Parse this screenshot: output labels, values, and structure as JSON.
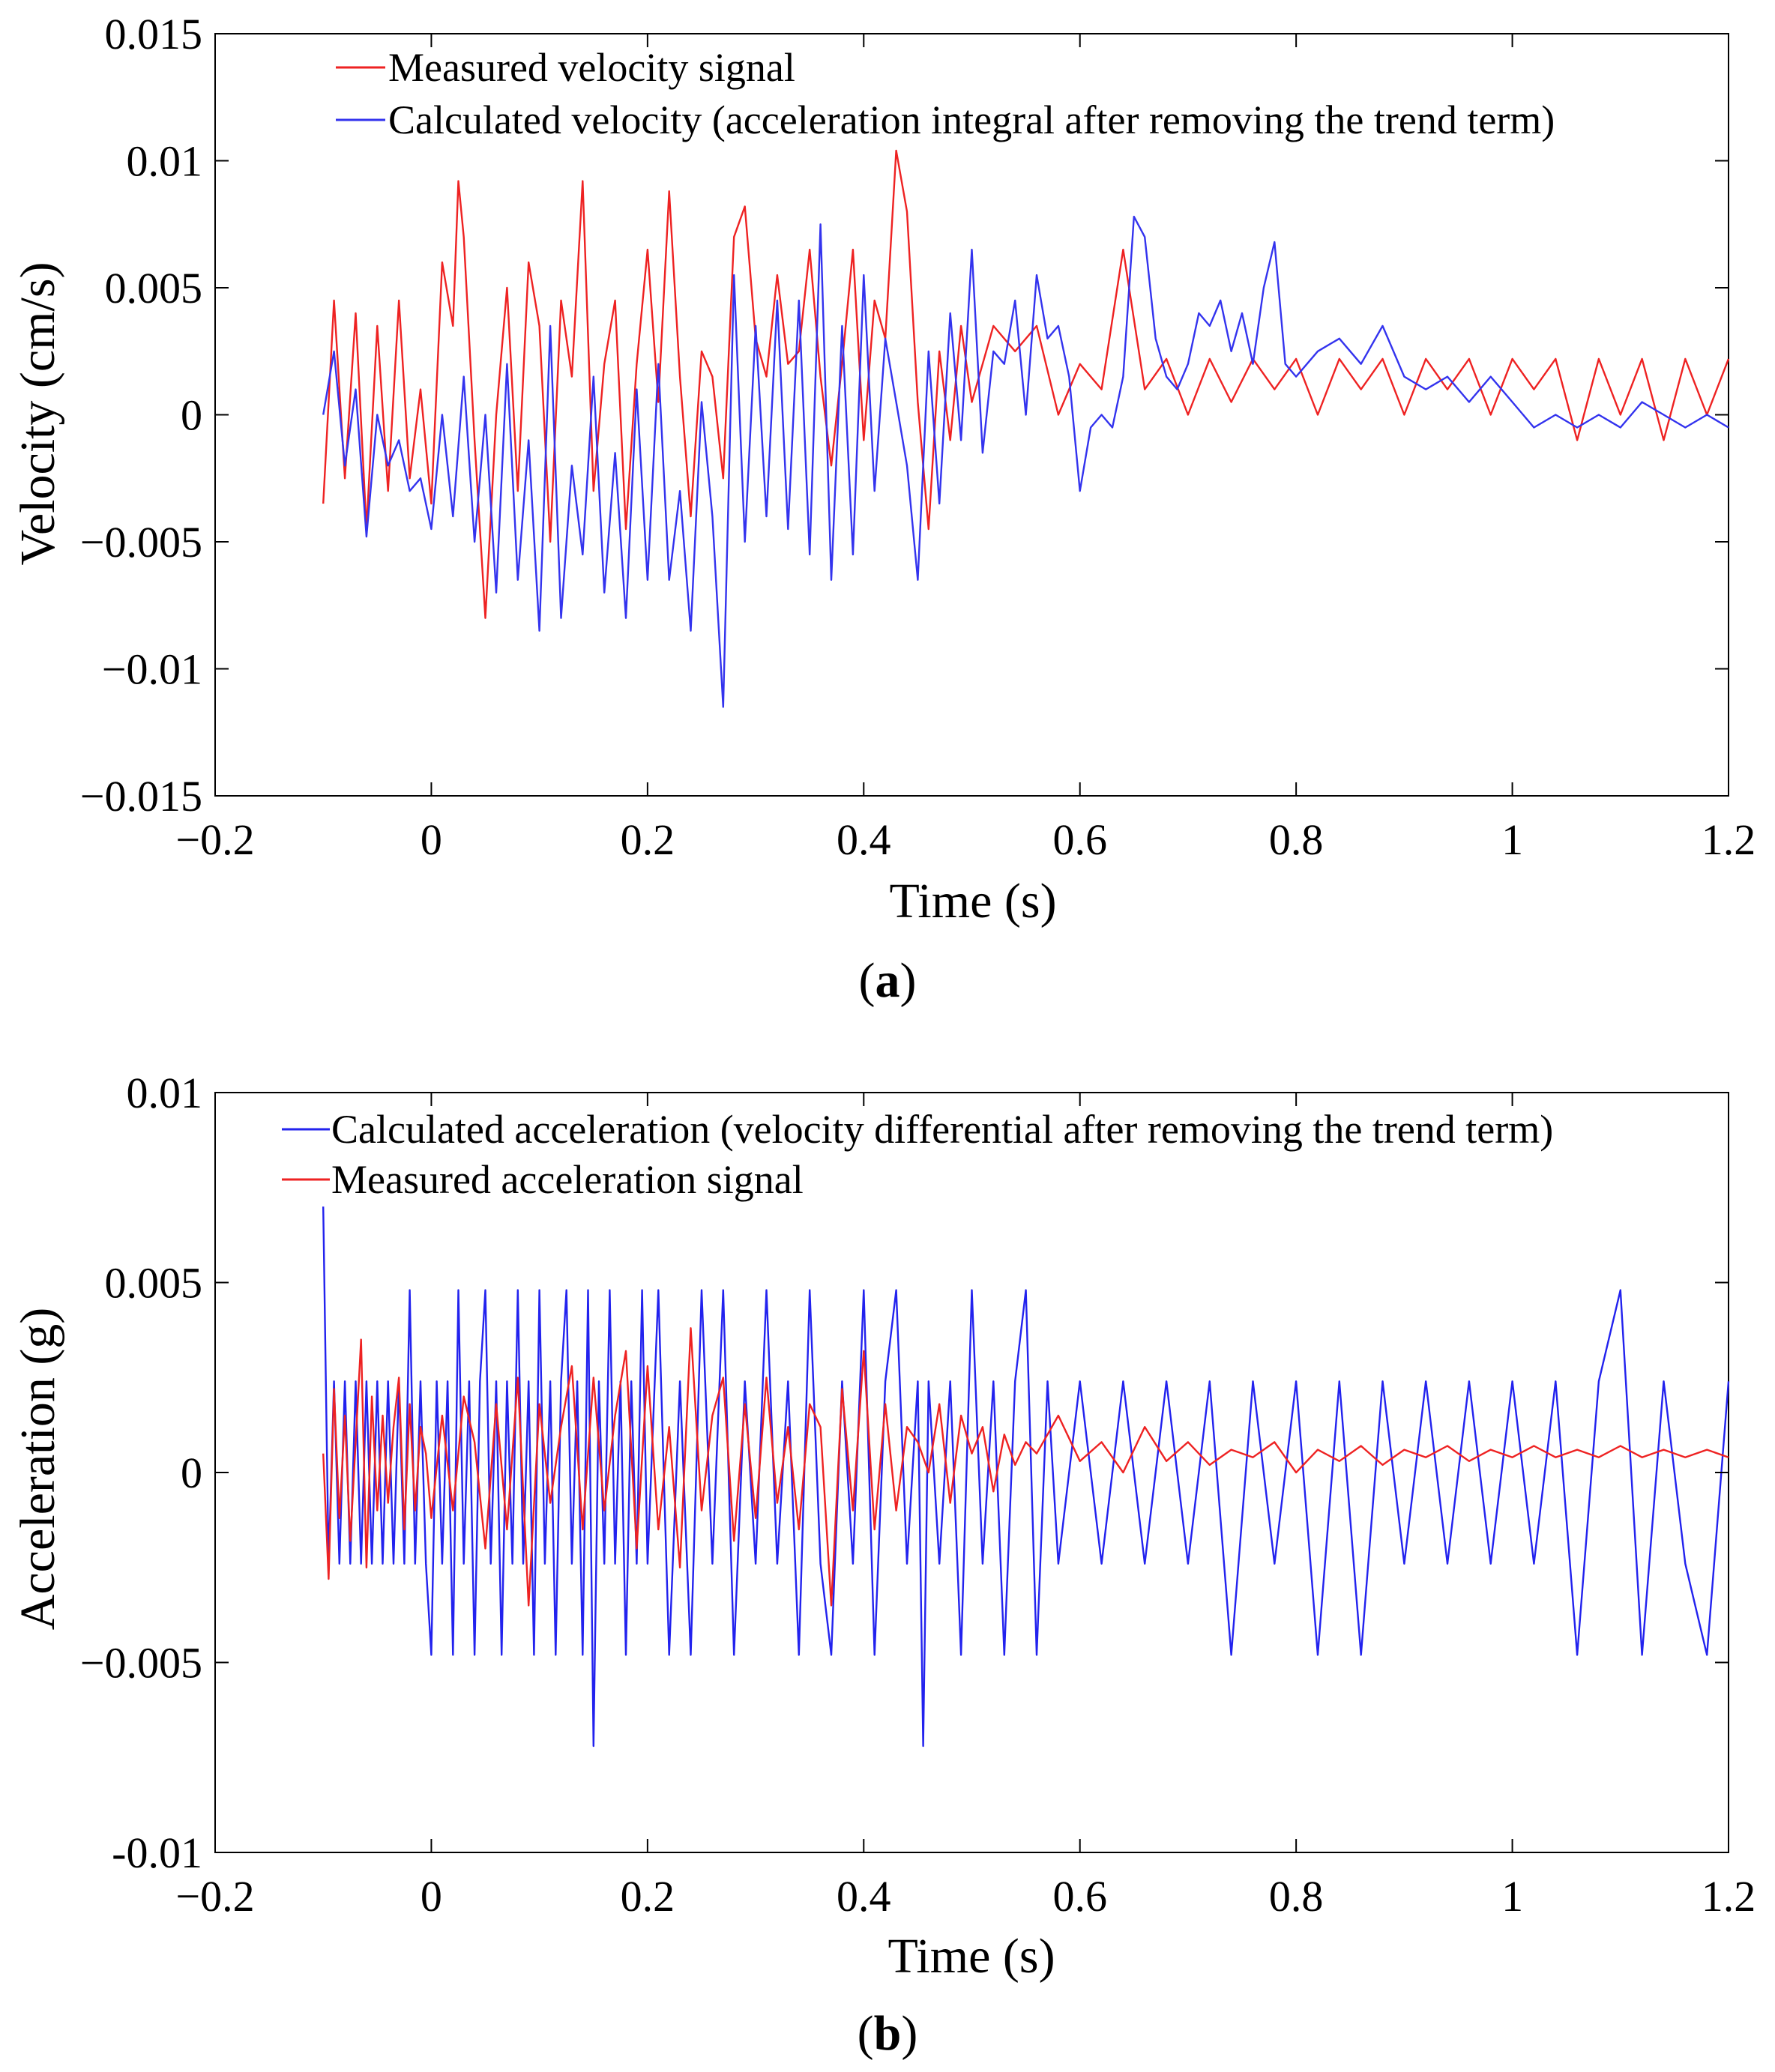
{
  "chart_data": [
    {
      "id": "a",
      "type": "line",
      "title": "",
      "panel_label": "a",
      "xlabel": "Time (s)",
      "ylabel": "Velocity (cm/s)",
      "xlim": [
        -0.2,
        1.2
      ],
      "ylim": [
        -0.015,
        0.015
      ],
      "xticks": [
        -0.2,
        0,
        0.2,
        0.4,
        0.6,
        0.8,
        1,
        1.2
      ],
      "xtick_labels": [
        "−0.2",
        "0",
        "0.2",
        "0.4",
        "0.6",
        "0.8",
        "1",
        "1.2"
      ],
      "yticks": [
        -0.015,
        -0.01,
        -0.005,
        0,
        0.005,
        0.01,
        0.015
      ],
      "ytick_labels": [
        "−0.015",
        "−0.01",
        "−0.005",
        "0",
        "0.005",
        "0.01",
        "0.015"
      ],
      "grid": false,
      "legend_position": "top",
      "series": [
        {
          "name": "Measured velocity signal",
          "color": "#ee2222",
          "x": [
            -0.1,
            -0.09,
            -0.08,
            -0.07,
            -0.06,
            -0.05,
            -0.04,
            -0.03,
            -0.02,
            -0.01,
            0.0,
            0.01,
            0.02,
            0.025,
            0.03,
            0.04,
            0.05,
            0.06,
            0.07,
            0.08,
            0.09,
            0.1,
            0.11,
            0.12,
            0.13,
            0.14,
            0.15,
            0.16,
            0.17,
            0.18,
            0.19,
            0.2,
            0.21,
            0.22,
            0.23,
            0.24,
            0.25,
            0.26,
            0.27,
            0.28,
            0.29,
            0.3,
            0.31,
            0.32,
            0.33,
            0.34,
            0.35,
            0.36,
            0.37,
            0.38,
            0.39,
            0.4,
            0.41,
            0.42,
            0.43,
            0.44,
            0.45,
            0.46,
            0.47,
            0.48,
            0.49,
            0.5,
            0.52,
            0.54,
            0.56,
            0.58,
            0.6,
            0.62,
            0.64,
            0.66,
            0.68,
            0.7,
            0.72,
            0.74,
            0.76,
            0.78,
            0.8,
            0.82,
            0.84,
            0.86,
            0.88,
            0.9,
            0.92,
            0.94,
            0.96,
            0.98,
            1.0,
            1.02,
            1.04,
            1.06,
            1.08,
            1.1,
            1.12,
            1.14,
            1.16,
            1.18,
            1.2
          ],
          "y": [
            -0.0035,
            0.0045,
            -0.0025,
            0.004,
            -0.0045,
            0.0035,
            -0.003,
            0.0045,
            -0.0025,
            0.001,
            -0.0035,
            0.006,
            0.0035,
            0.0092,
            0.007,
            -0.001,
            -0.008,
            0.0,
            0.005,
            -0.003,
            0.006,
            0.0035,
            -0.005,
            0.0045,
            0.0015,
            0.0092,
            -0.003,
            0.002,
            0.0045,
            -0.0045,
            0.002,
            0.0065,
            0.0005,
            0.0088,
            0.0015,
            -0.004,
            0.0025,
            0.0015,
            -0.0025,
            0.007,
            0.0082,
            0.003,
            0.0015,
            0.0055,
            0.002,
            0.0025,
            0.0065,
            0.0015,
            -0.002,
            0.002,
            0.0065,
            -0.001,
            0.0045,
            0.003,
            0.0104,
            0.008,
            0.0005,
            -0.0045,
            0.0025,
            -0.001,
            0.0035,
            0.0005,
            0.0035,
            0.0025,
            0.0035,
            0.0,
            0.002,
            0.001,
            0.0065,
            0.001,
            0.0022,
            0.0,
            0.0022,
            0.0005,
            0.0022,
            0.001,
            0.0022,
            0.0,
            0.0022,
            0.001,
            0.0022,
            0.0,
            0.0022,
            0.001,
            0.0022,
            0.0,
            0.0022,
            0.001,
            0.0022,
            -0.001,
            0.0022,
            0.0,
            0.0022,
            -0.001,
            0.0022,
            0.0,
            0.0022
          ]
        },
        {
          "name": "Calculated velocity (acceleration integral after removing the trend term)",
          "color": "#3333ee",
          "x": [
            -0.1,
            -0.09,
            -0.08,
            -0.07,
            -0.06,
            -0.05,
            -0.04,
            -0.03,
            -0.02,
            -0.01,
            0.0,
            0.01,
            0.02,
            0.03,
            0.04,
            0.05,
            0.06,
            0.07,
            0.08,
            0.09,
            0.1,
            0.11,
            0.12,
            0.13,
            0.14,
            0.15,
            0.16,
            0.17,
            0.18,
            0.19,
            0.2,
            0.21,
            0.22,
            0.23,
            0.24,
            0.25,
            0.26,
            0.27,
            0.28,
            0.29,
            0.3,
            0.31,
            0.32,
            0.33,
            0.34,
            0.35,
            0.36,
            0.37,
            0.38,
            0.39,
            0.4,
            0.41,
            0.42,
            0.43,
            0.44,
            0.45,
            0.46,
            0.47,
            0.48,
            0.49,
            0.5,
            0.51,
            0.52,
            0.53,
            0.54,
            0.55,
            0.56,
            0.57,
            0.58,
            0.59,
            0.6,
            0.61,
            0.62,
            0.63,
            0.64,
            0.65,
            0.66,
            0.67,
            0.68,
            0.69,
            0.7,
            0.71,
            0.72,
            0.73,
            0.74,
            0.75,
            0.76,
            0.77,
            0.78,
            0.79,
            0.8,
            0.82,
            0.84,
            0.86,
            0.88,
            0.9,
            0.92,
            0.94,
            0.96,
            0.98,
            1.0,
            1.02,
            1.04,
            1.06,
            1.08,
            1.1,
            1.12,
            1.14,
            1.16,
            1.18,
            1.2
          ],
          "y": [
            0.0,
            0.0025,
            -0.002,
            0.001,
            -0.0048,
            0.0,
            -0.002,
            -0.001,
            -0.003,
            -0.0025,
            -0.0045,
            0.0,
            -0.004,
            0.0015,
            -0.005,
            0.0,
            -0.007,
            0.002,
            -0.0065,
            -0.001,
            -0.0085,
            0.0035,
            -0.008,
            -0.002,
            -0.0055,
            0.0015,
            -0.007,
            -0.0015,
            -0.008,
            0.001,
            -0.0065,
            0.002,
            -0.0065,
            -0.003,
            -0.0085,
            0.0005,
            -0.004,
            -0.0115,
            0.0055,
            -0.005,
            0.0035,
            -0.004,
            0.0045,
            -0.0045,
            0.0045,
            -0.0055,
            0.0075,
            -0.0065,
            0.0035,
            -0.0055,
            0.0055,
            -0.003,
            0.003,
            0.0005,
            -0.002,
            -0.0065,
            0.0025,
            -0.0035,
            0.004,
            -0.001,
            0.0065,
            -0.0015,
            0.0025,
            0.002,
            0.0045,
            0.0,
            0.0055,
            0.003,
            0.0035,
            0.0015,
            -0.003,
            -0.0005,
            0.0,
            -0.0005,
            0.0015,
            0.0078,
            0.007,
            0.003,
            0.0015,
            0.001,
            0.002,
            0.004,
            0.0035,
            0.0045,
            0.0025,
            0.004,
            0.002,
            0.005,
            0.0068,
            0.002,
            0.0015,
            0.0025,
            0.003,
            0.002,
            0.0035,
            0.0015,
            0.001,
            0.0015,
            0.0005,
            0.0015,
            0.0005,
            -0.0005,
            0.0,
            -0.0005,
            0.0,
            -0.0005,
            0.0005,
            0.0,
            -0.0005,
            0.0,
            -0.0005
          ]
        }
      ]
    },
    {
      "id": "b",
      "type": "line",
      "title": "",
      "panel_label": "b",
      "xlabel": "Time (s)",
      "ylabel": "Acceleration (g)",
      "xlim": [
        -0.2,
        1.2
      ],
      "ylim": [
        -0.01,
        0.01
      ],
      "xticks": [
        -0.2,
        0,
        0.2,
        0.4,
        0.6,
        0.8,
        1,
        1.2
      ],
      "xtick_labels": [
        "−0.2",
        "0",
        "0.2",
        "0.4",
        "0.6",
        "0.8",
        "1",
        "1.2"
      ],
      "yticks": [
        -0.01,
        -0.005,
        0,
        0.005,
        0.01
      ],
      "ytick_labels": [
        "-0.01",
        "−0.005",
        "0",
        "0.005",
        "0.01"
      ],
      "grid": false,
      "legend_position": "top",
      "series": [
        {
          "name": "Calculated acceleration (velocity differential after removing the trend term)",
          "color": "#2222ee",
          "x": [
            -0.1,
            -0.095,
            -0.09,
            -0.085,
            -0.08,
            -0.075,
            -0.07,
            -0.065,
            -0.06,
            -0.055,
            -0.05,
            -0.045,
            -0.04,
            -0.035,
            -0.03,
            -0.025,
            -0.02,
            -0.015,
            -0.01,
            -0.005,
            0.0,
            0.005,
            0.01,
            0.015,
            0.02,
            0.025,
            0.03,
            0.035,
            0.04,
            0.045,
            0.05,
            0.055,
            0.06,
            0.065,
            0.07,
            0.075,
            0.08,
            0.085,
            0.09,
            0.095,
            0.1,
            0.105,
            0.11,
            0.115,
            0.12,
            0.125,
            0.13,
            0.135,
            0.14,
            0.145,
            0.15,
            0.155,
            0.16,
            0.165,
            0.17,
            0.175,
            0.18,
            0.185,
            0.19,
            0.195,
            0.2,
            0.21,
            0.22,
            0.23,
            0.24,
            0.25,
            0.26,
            0.27,
            0.28,
            0.29,
            0.3,
            0.31,
            0.32,
            0.33,
            0.34,
            0.35,
            0.36,
            0.37,
            0.38,
            0.39,
            0.4,
            0.41,
            0.42,
            0.43,
            0.44,
            0.45,
            0.455,
            0.46,
            0.47,
            0.48,
            0.49,
            0.5,
            0.51,
            0.52,
            0.53,
            0.54,
            0.55,
            0.56,
            0.57,
            0.58,
            0.6,
            0.62,
            0.64,
            0.66,
            0.68,
            0.7,
            0.72,
            0.74,
            0.76,
            0.78,
            0.8,
            0.82,
            0.84,
            0.86,
            0.88,
            0.9,
            0.92,
            0.94,
            0.96,
            0.98,
            1.0,
            1.02,
            1.04,
            1.06,
            1.08,
            1.1,
            1.12,
            1.14,
            1.16,
            1.18,
            1.2
          ],
          "y": [
            0.007,
            -0.0024,
            0.0024,
            -0.0024,
            0.0024,
            -0.0024,
            0.0024,
            -0.0024,
            0.0024,
            -0.0024,
            0.0024,
            -0.0024,
            0.0024,
            -0.0024,
            0.0024,
            -0.0024,
            0.0048,
            -0.0024,
            0.0024,
            -0.0024,
            -0.0048,
            0.0024,
            -0.0024,
            0.0024,
            -0.0048,
            0.0048,
            -0.0024,
            0.0024,
            -0.0048,
            0.0024,
            0.0048,
            -0.0024,
            0.0024,
            -0.0048,
            0.0024,
            -0.0024,
            0.0048,
            -0.0024,
            0.0024,
            -0.0048,
            0.0048,
            -0.0024,
            0.0024,
            -0.0048,
            0.0024,
            0.0048,
            -0.0024,
            0.0024,
            -0.0048,
            0.0048,
            -0.0072,
            0.0024,
            -0.0024,
            0.0048,
            -0.0024,
            0.0024,
            -0.0048,
            0.0024,
            -0.0024,
            0.0048,
            -0.0024,
            0.0048,
            -0.0048,
            0.0024,
            -0.0048,
            0.0048,
            -0.0024,
            0.0048,
            -0.0048,
            0.0024,
            -0.0024,
            0.0048,
            -0.0024,
            0.0024,
            -0.0048,
            0.0048,
            -0.0024,
            -0.0048,
            0.0024,
            -0.0024,
            0.0048,
            -0.0048,
            0.0024,
            0.0048,
            -0.0024,
            0.0024,
            -0.0072,
            0.0024,
            -0.0024,
            0.0024,
            -0.0048,
            0.0048,
            -0.0024,
            0.0024,
            -0.0048,
            0.0024,
            0.0048,
            -0.0048,
            0.0024,
            -0.0024,
            0.0024,
            -0.0024,
            0.0024,
            -0.0024,
            0.0024,
            -0.0024,
            0.0024,
            -0.0048,
            0.0024,
            -0.0024,
            0.0024,
            -0.0048,
            0.0024,
            -0.0048,
            0.0024,
            -0.0024,
            0.0024,
            -0.0024,
            0.0024,
            -0.0024,
            0.0024,
            -0.0024,
            0.0024,
            -0.0048,
            0.0024,
            0.0048,
            -0.0048,
            0.0024,
            -0.0024,
            -0.0048,
            0.0024
          ]
        },
        {
          "name": "Measured acceleration signal",
          "color": "#ee2222",
          "x": [
            -0.1,
            -0.095,
            -0.09,
            -0.085,
            -0.08,
            -0.075,
            -0.07,
            -0.065,
            -0.06,
            -0.055,
            -0.05,
            -0.045,
            -0.04,
            -0.035,
            -0.03,
            -0.025,
            -0.02,
            -0.015,
            -0.01,
            -0.005,
            0.0,
            0.01,
            0.02,
            0.03,
            0.04,
            0.05,
            0.06,
            0.07,
            0.08,
            0.09,
            0.1,
            0.11,
            0.12,
            0.13,
            0.14,
            0.15,
            0.16,
            0.17,
            0.18,
            0.19,
            0.2,
            0.21,
            0.22,
            0.23,
            0.24,
            0.25,
            0.26,
            0.27,
            0.28,
            0.29,
            0.3,
            0.31,
            0.32,
            0.33,
            0.34,
            0.35,
            0.36,
            0.37,
            0.38,
            0.39,
            0.4,
            0.41,
            0.42,
            0.43,
            0.44,
            0.45,
            0.46,
            0.47,
            0.48,
            0.49,
            0.5,
            0.51,
            0.52,
            0.53,
            0.54,
            0.55,
            0.56,
            0.58,
            0.6,
            0.62,
            0.64,
            0.66,
            0.68,
            0.7,
            0.72,
            0.74,
            0.76,
            0.78,
            0.8,
            0.82,
            0.84,
            0.86,
            0.88,
            0.9,
            0.92,
            0.94,
            0.96,
            0.98,
            1.0,
            1.02,
            1.04,
            1.06,
            1.08,
            1.1,
            1.12,
            1.14,
            1.16,
            1.18,
            1.2
          ],
          "y": [
            0.0005,
            -0.0028,
            0.0022,
            -0.0012,
            0.0015,
            -0.0018,
            0.0008,
            0.0035,
            -0.0025,
            0.002,
            -0.001,
            0.0015,
            -0.0008,
            0.0012,
            0.0025,
            -0.0015,
            0.0018,
            -0.001,
            0.0012,
            0.0005,
            -0.0012,
            0.0015,
            -0.001,
            0.002,
            0.0008,
            -0.002,
            0.0018,
            -0.0015,
            0.0025,
            -0.0035,
            0.0018,
            -0.0008,
            0.0012,
            0.0028,
            -0.0015,
            0.0025,
            -0.001,
            0.0015,
            0.0032,
            -0.002,
            0.0028,
            -0.0015,
            0.0012,
            -0.0025,
            0.0038,
            -0.001,
            0.0015,
            0.0025,
            -0.0018,
            0.0018,
            -0.0012,
            0.0025,
            -0.0008,
            0.0012,
            -0.0015,
            0.0018,
            0.0012,
            -0.0035,
            0.0022,
            -0.001,
            0.0032,
            -0.0015,
            0.0018,
            -0.001,
            0.0012,
            0.0008,
            0.0,
            0.0018,
            -0.0008,
            0.0015,
            0.0005,
            0.0012,
            -0.0005,
            0.001,
            0.0002,
            0.0008,
            0.0005,
            0.0015,
            0.0003,
            0.0008,
            0.0,
            0.0012,
            0.0003,
            0.0008,
            0.0002,
            0.0006,
            0.0004,
            0.0008,
            0.0,
            0.0006,
            0.0003,
            0.0007,
            0.0002,
            0.0006,
            0.0004,
            0.0007,
            0.0003,
            0.0006,
            0.0004,
            0.0007,
            0.0004,
            0.0006,
            0.0004,
            0.0007,
            0.0004,
            0.0006,
            0.0004,
            0.0006,
            0.0004
          ]
        }
      ]
    }
  ]
}
